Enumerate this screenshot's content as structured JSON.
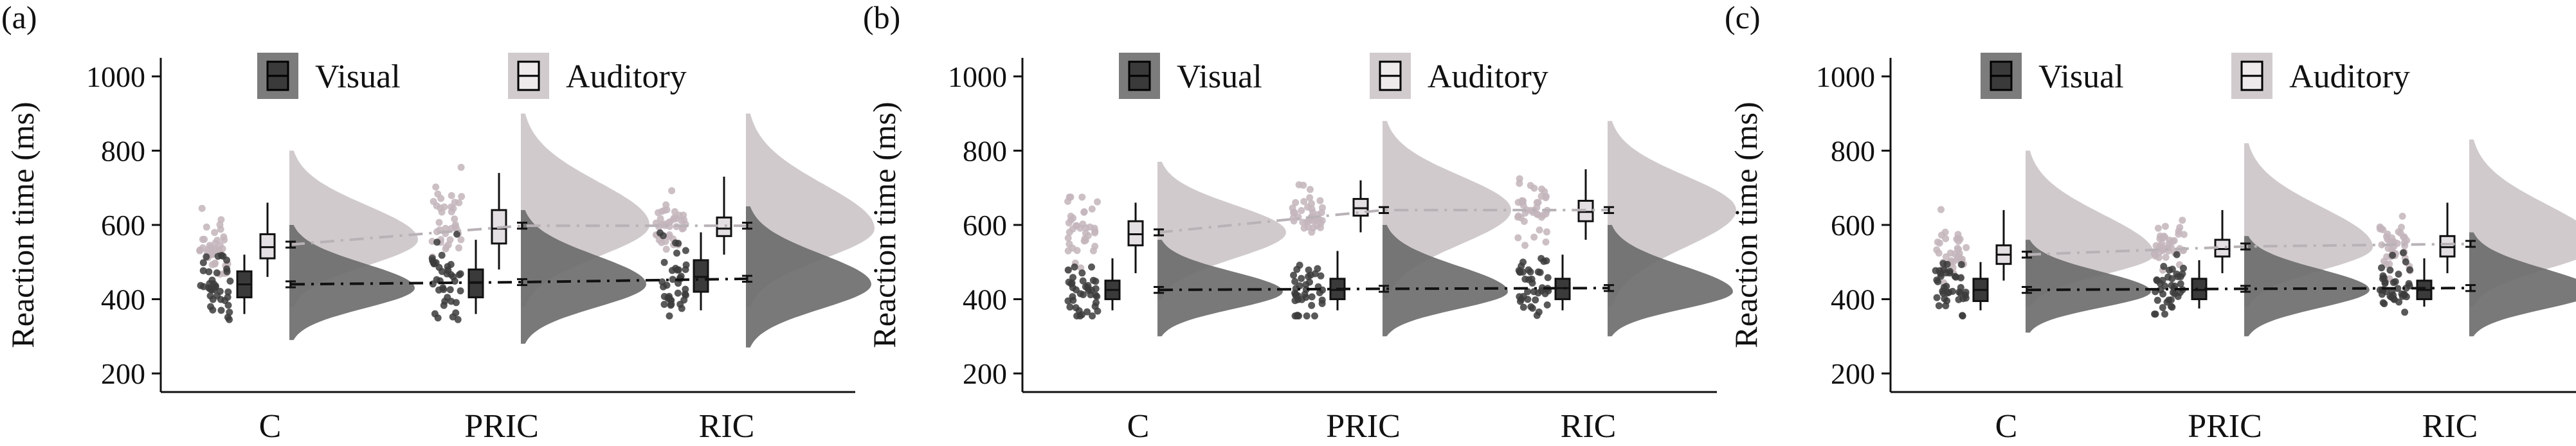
{
  "figure": {
    "legend": {
      "visual": "Visual",
      "auditory": "Auditory"
    },
    "colors": {
      "visual_box": "#3a3a3a",
      "visual_dot": "#3c3c3c",
      "visual_violin": "#6e6e6e",
      "auditory_box": "#d6d0d4",
      "auditory_dot": "#c3b5bb",
      "auditory_violin": "#ccc5c9",
      "auditory_mean_line": "#b8b2b6",
      "visual_mean_line": "#111111"
    }
  },
  "chart_data": [
    {
      "type": "raincloud",
      "panel_label": "(a)",
      "ylabel": "Reaction time (ms)",
      "ylim": [
        150,
        1050
      ],
      "yticks": [
        200,
        400,
        600,
        800,
        1000
      ],
      "categories": [
        "C",
        "PRIC",
        "RIC"
      ],
      "grid": false,
      "legend_position": "top",
      "series": [
        {
          "name": "Visual",
          "means": [
            440,
            446,
            455
          ],
          "box": [
            {
              "min": 360,
              "q1": 405,
              "median": 440,
              "q3": 475,
              "max": 520
            },
            {
              "min": 360,
              "q1": 405,
              "median": 445,
              "q3": 480,
              "max": 560
            },
            {
              "min": 370,
              "q1": 420,
              "median": 460,
              "q3": 505,
              "max": 580
            }
          ],
          "violin_peak": [
            430,
            440,
            440
          ],
          "violin_range": [
            [
              290,
              600
            ],
            [
              280,
              640
            ],
            [
              270,
              650
            ]
          ]
        },
        {
          "name": "Auditory",
          "means": [
            547,
            598,
            598
          ],
          "box": [
            {
              "min": 460,
              "q1": 510,
              "median": 540,
              "q3": 575,
              "max": 660
            },
            {
              "min": 480,
              "q1": 550,
              "median": 590,
              "q3": 640,
              "max": 740
            },
            {
              "min": 520,
              "q1": 570,
              "median": 590,
              "q3": 620,
              "max": 730
            }
          ],
          "violin_peak": [
            560,
            600,
            590
          ],
          "violin_range": [
            [
              380,
              800
            ],
            [
              380,
              900
            ],
            [
              380,
              900
            ]
          ]
        }
      ]
    },
    {
      "type": "raincloud",
      "panel_label": "(b)",
      "ylabel": "Reaction time (ms)",
      "ylim": [
        150,
        1050
      ],
      "yticks": [
        200,
        400,
        600,
        800,
        1000
      ],
      "categories": [
        "C",
        "PRIC",
        "RIC"
      ],
      "grid": false,
      "legend_position": "top",
      "series": [
        {
          "name": "Visual",
          "means": [
            425,
            428,
            430
          ],
          "box": [
            {
              "min": 370,
              "q1": 400,
              "median": 425,
              "q3": 450,
              "max": 510
            },
            {
              "min": 370,
              "q1": 400,
              "median": 425,
              "q3": 455,
              "max": 530
            },
            {
              "min": 370,
              "q1": 400,
              "median": 430,
              "q3": 455,
              "max": 520
            }
          ],
          "violin_peak": [
            420,
            420,
            420
          ],
          "violin_range": [
            [
              300,
              560
            ],
            [
              300,
              600
            ],
            [
              300,
              600
            ]
          ]
        },
        {
          "name": "Auditory",
          "means": [
            580,
            640,
            640
          ],
          "box": [
            {
              "min": 470,
              "q1": 545,
              "median": 575,
              "q3": 610,
              "max": 660
            },
            {
              "min": 580,
              "q1": 625,
              "median": 645,
              "q3": 670,
              "max": 720
            },
            {
              "min": 560,
              "q1": 610,
              "median": 635,
              "q3": 665,
              "max": 750
            }
          ],
          "violin_peak": [
            580,
            640,
            640
          ],
          "violin_range": [
            [
              400,
              770
            ],
            [
              400,
              880
            ],
            [
              380,
              880
            ]
          ]
        }
      ]
    },
    {
      "type": "raincloud",
      "panel_label": "(c)",
      "ylabel": "Reaction time (ms)",
      "ylim": [
        150,
        1050
      ],
      "yticks": [
        200,
        400,
        600,
        800,
        1000
      ],
      "categories": [
        "C",
        "PRIC",
        "RIC"
      ],
      "grid": false,
      "legend_position": "top",
      "series": [
        {
          "name": "Visual",
          "means": [
            425,
            428,
            430
          ],
          "box": [
            {
              "min": 370,
              "q1": 395,
              "median": 425,
              "q3": 455,
              "max": 500
            },
            {
              "min": 375,
              "q1": 400,
              "median": 425,
              "q3": 455,
              "max": 505
            },
            {
              "min": 380,
              "q1": 400,
              "median": 425,
              "q3": 450,
              "max": 510
            }
          ],
          "violin_peak": [
            420,
            425,
            420
          ],
          "violin_range": [
            [
              310,
              560
            ],
            [
              300,
              570
            ],
            [
              300,
              580
            ]
          ]
        },
        {
          "name": "Auditory",
          "means": [
            520,
            542,
            549
          ],
          "box": [
            {
              "min": 450,
              "q1": 495,
              "median": 520,
              "q3": 545,
              "max": 640
            },
            {
              "min": 470,
              "q1": 515,
              "median": 535,
              "q3": 560,
              "max": 640
            },
            {
              "min": 470,
              "q1": 515,
              "median": 540,
              "q3": 570,
              "max": 660
            }
          ],
          "violin_peak": [
            520,
            540,
            545
          ],
          "violin_range": [
            [
              380,
              800
            ],
            [
              380,
              820
            ],
            [
              380,
              830
            ]
          ]
        }
      ]
    }
  ]
}
